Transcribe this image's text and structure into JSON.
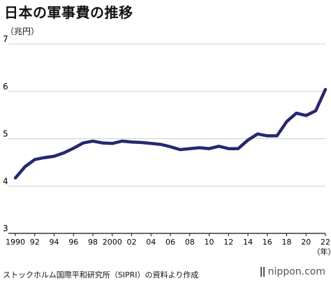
{
  "title": "日本の軍事費の推移",
  "unit_label": "（兆円）",
  "x_unit_label": "（年）",
  "source": "ストックホルム国際平和研究所（SIPRI）の資料より作成",
  "logo_text": "nippon.com",
  "colors": {
    "line": "#27286e",
    "grid": "#bfbfbf",
    "axis": "#111111"
  },
  "chart_data": {
    "type": "line",
    "title": "日本の軍事費の推移",
    "ylabel": "（兆円）",
    "xlabel": "（年）",
    "ylim": [
      3,
      7
    ],
    "yticks": [
      3,
      4,
      5,
      6,
      7
    ],
    "xlim": [
      1990,
      2022
    ],
    "xticks": [
      {
        "value": 1990,
        "label": "1990"
      },
      {
        "value": 1992,
        "label": "92"
      },
      {
        "value": 1994,
        "label": "94"
      },
      {
        "value": 1996,
        "label": "96"
      },
      {
        "value": 1998,
        "label": "98"
      },
      {
        "value": 2000,
        "label": "2000"
      },
      {
        "value": 2002,
        "label": "02"
      },
      {
        "value": 2004,
        "label": "04"
      },
      {
        "value": 2006,
        "label": "06"
      },
      {
        "value": 2008,
        "label": "08"
      },
      {
        "value": 2010,
        "label": "10"
      },
      {
        "value": 2012,
        "label": "12"
      },
      {
        "value": 2014,
        "label": "14"
      },
      {
        "value": 2016,
        "label": "16"
      },
      {
        "value": 2018,
        "label": "18"
      },
      {
        "value": 2020,
        "label": "20"
      },
      {
        "value": 2022,
        "label": "22"
      }
    ],
    "grid": true,
    "series": [
      {
        "x": [
          1990,
          1991,
          1992,
          1993,
          1994,
          1995,
          1996,
          1997,
          1998,
          1999,
          2000,
          2001,
          2002,
          2003,
          2004,
          2005,
          2006,
          2007,
          2008,
          2009,
          2010,
          2011,
          2012,
          2013,
          2014,
          2015,
          2016,
          2017,
          2018,
          2019,
          2020,
          2021,
          2022
        ],
        "values": [
          4.17,
          4.41,
          4.56,
          4.6,
          4.63,
          4.7,
          4.8,
          4.91,
          4.95,
          4.91,
          4.9,
          4.95,
          4.93,
          4.92,
          4.9,
          4.88,
          4.83,
          4.77,
          4.79,
          4.81,
          4.79,
          4.84,
          4.79,
          4.79,
          4.97,
          5.1,
          5.06,
          5.06,
          5.36,
          5.54,
          5.49,
          5.59,
          6.04
        ]
      }
    ]
  }
}
